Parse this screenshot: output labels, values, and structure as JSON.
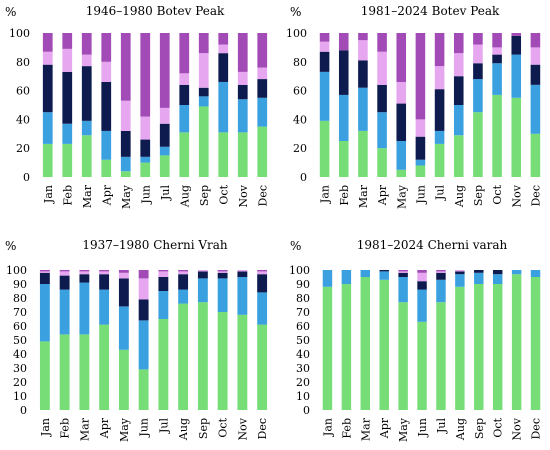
{
  "chart_data": [
    {
      "type": "bar",
      "stacked": true,
      "title": "1946–1980 Botev Peak",
      "ylabel": "%",
      "ylim": [
        0,
        100
      ],
      "yticks": [
        0,
        20,
        40,
        60,
        80,
        100
      ],
      "categories": [
        "Jan",
        "Feb",
        "Mar",
        "Apr",
        "May",
        "Jun",
        "Jul",
        "Aug",
        "Sep",
        "Oct",
        "Nov",
        "Dec"
      ],
      "series": [
        {
          "color": "#77dd77",
          "values": [
            23,
            23,
            29,
            12,
            4,
            10,
            15,
            31,
            49,
            31,
            31,
            35
          ]
        },
        {
          "color": "#3aa0e0",
          "values": [
            22,
            14,
            10,
            20,
            10,
            4,
            6,
            19,
            7,
            35,
            23,
            20
          ]
        },
        {
          "color": "#0d1b4f",
          "values": [
            33,
            36,
            38,
            34,
            18,
            12,
            16,
            14,
            6,
            20,
            10,
            13
          ]
        },
        {
          "color": "#e6a6f0",
          "values": [
            9,
            16,
            8,
            14,
            21,
            16,
            11,
            8,
            24,
            6,
            9,
            8
          ]
        },
        {
          "color": "#a24ab5",
          "values": [
            13,
            11,
            15,
            20,
            47,
            58,
            52,
            28,
            14,
            8,
            27,
            24
          ]
        }
      ]
    },
    {
      "type": "bar",
      "stacked": true,
      "title": "1981–2024 Botev Peak",
      "ylabel": "%",
      "ylim": [
        0,
        100
      ],
      "yticks": [
        0,
        20,
        40,
        60,
        80,
        100
      ],
      "categories": [
        "Jan",
        "Feb",
        "Mar",
        "Apr",
        "May",
        "Jun",
        "Jul",
        "Aug",
        "Sep",
        "Oct",
        "Nov",
        "Dec"
      ],
      "series": [
        {
          "color": "#77dd77",
          "values": [
            39,
            25,
            32,
            20,
            5,
            8,
            23,
            29,
            45,
            57,
            55,
            30
          ]
        },
        {
          "color": "#3aa0e0",
          "values": [
            34,
            32,
            30,
            25,
            20,
            4,
            9,
            21,
            23,
            22,
            30,
            34
          ]
        },
        {
          "color": "#0d1b4f",
          "values": [
            14,
            31,
            19,
            19,
            26,
            16,
            29,
            20,
            11,
            6,
            13,
            14
          ]
        },
        {
          "color": "#e6a6f0",
          "values": [
            7,
            0,
            14,
            23,
            15,
            12,
            16,
            16,
            13,
            5,
            0,
            12
          ]
        },
        {
          "color": "#a24ab5",
          "values": [
            6,
            12,
            5,
            13,
            34,
            60,
            23,
            14,
            8,
            10,
            2,
            10
          ]
        }
      ]
    },
    {
      "type": "bar",
      "stacked": true,
      "title": "1937–1980 Cherni Vrah",
      "ylabel": "%",
      "ylim": [
        0,
        100
      ],
      "yticks": [
        0,
        10,
        20,
        30,
        40,
        50,
        60,
        70,
        80,
        90,
        100
      ],
      "categories": [
        "Jan",
        "Feb",
        "Mar",
        "Apr",
        "May",
        "Jun",
        "Jul",
        "Aug",
        "Sep",
        "Oct",
        "Nov",
        "Dec"
      ],
      "series": [
        {
          "color": "#77dd77",
          "values": [
            49,
            54,
            54,
            61,
            43,
            29,
            65,
            76,
            77,
            70,
            68,
            61
          ]
        },
        {
          "color": "#3aa0e0",
          "values": [
            41,
            32,
            37,
            25,
            31,
            35,
            20,
            10,
            17,
            24,
            27,
            23
          ]
        },
        {
          "color": "#0d1b4f",
          "values": [
            8,
            10,
            6,
            11,
            20,
            15,
            10,
            11,
            5,
            4,
            4,
            13
          ]
        },
        {
          "color": "#e6a6f0",
          "values": [
            1,
            3,
            2,
            2,
            4,
            15,
            4,
            2,
            1,
            1,
            1,
            2
          ]
        },
        {
          "color": "#a24ab5",
          "values": [
            1,
            1,
            1,
            1,
            2,
            6,
            1,
            1,
            0,
            1,
            0,
            1
          ]
        }
      ]
    },
    {
      "type": "bar",
      "stacked": true,
      "title": "1981–2024 Cherni varah",
      "ylabel": "%",
      "ylim": [
        0,
        100
      ],
      "yticks": [
        0,
        10,
        20,
        30,
        40,
        50,
        60,
        70,
        80,
        90,
        100
      ],
      "categories": [
        "Jan",
        "Feb",
        "Mar",
        "Apr",
        "May",
        "Jun",
        "Jul",
        "Aug",
        "Sep",
        "Oct",
        "Nov",
        "Dec"
      ],
      "series": [
        {
          "color": "#77dd77",
          "values": [
            88,
            90,
            95,
            93,
            77,
            63,
            77,
            88,
            90,
            90,
            97,
            95
          ]
        },
        {
          "color": "#3aa0e0",
          "values": [
            12,
            10,
            5,
            6,
            18,
            23,
            16,
            9,
            8,
            7,
            3,
            5
          ]
        },
        {
          "color": "#0d1b4f",
          "values": [
            0,
            0,
            0,
            1,
            3,
            6,
            5,
            2,
            2,
            3,
            0,
            0
          ]
        },
        {
          "color": "#e6a6f0",
          "values": [
            0,
            0,
            0,
            0,
            1,
            6,
            1,
            1,
            0,
            0,
            0,
            0
          ]
        },
        {
          "color": "#a24ab5",
          "values": [
            0,
            0,
            0,
            0,
            1,
            2,
            1,
            0,
            0,
            0,
            0,
            0
          ]
        }
      ]
    }
  ]
}
